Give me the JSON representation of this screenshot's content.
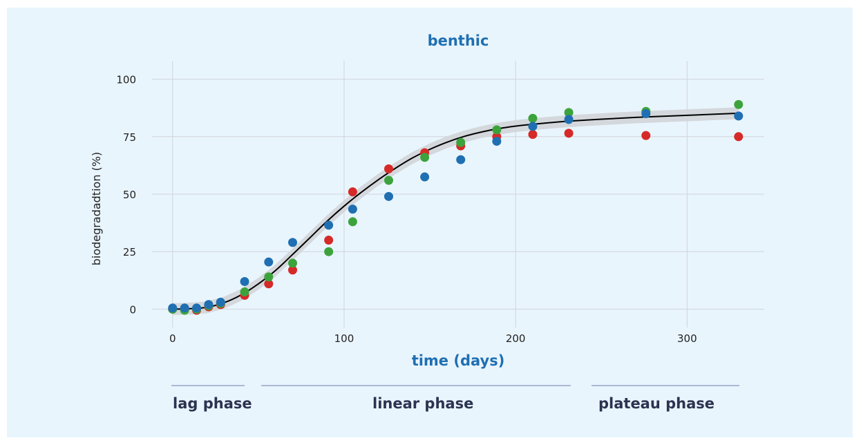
{
  "chart_data": {
    "type": "scatter",
    "title": "benthic",
    "xlabel": "time (days)",
    "ylabel": "biodegradadtion (%)",
    "xlim": [
      -12,
      345
    ],
    "ylim": [
      -8,
      108
    ],
    "xticks": [
      0,
      100,
      200,
      300
    ],
    "yticks": [
      0,
      25,
      50,
      75,
      100
    ],
    "grid": true,
    "colors": {
      "title": "#1f6fb2",
      "axis_label": "#1f6fb2",
      "grid": "#cfd4da",
      "fit_line": "#000000",
      "ribbon": "#d2d5d8"
    },
    "series": [
      {
        "color": "#d62a28",
        "points": [
          [
            0,
            0
          ],
          [
            7,
            0
          ],
          [
            14,
            -0.5
          ],
          [
            21,
            1
          ],
          [
            28,
            2
          ],
          [
            42,
            6
          ],
          [
            56,
            11
          ],
          [
            70,
            17
          ],
          [
            91,
            30
          ],
          [
            105,
            51
          ],
          [
            126,
            61
          ],
          [
            147,
            68
          ],
          [
            168,
            71
          ],
          [
            189,
            75
          ],
          [
            210,
            76
          ],
          [
            231,
            76.5
          ],
          [
            276,
            75.5
          ],
          [
            330,
            75
          ]
        ]
      },
      {
        "color": "#3ca33c",
        "points": [
          [
            0,
            0
          ],
          [
            7,
            -0.5
          ],
          [
            14,
            0
          ],
          [
            21,
            1.5
          ],
          [
            28,
            2.5
          ],
          [
            42,
            7.5
          ],
          [
            56,
            14
          ],
          [
            70,
            20
          ],
          [
            91,
            25
          ],
          [
            105,
            38
          ],
          [
            126,
            56
          ],
          [
            147,
            66
          ],
          [
            168,
            72.5
          ],
          [
            189,
            78
          ],
          [
            210,
            83
          ],
          [
            231,
            85.5
          ],
          [
            276,
            86
          ],
          [
            330,
            89
          ]
        ]
      },
      {
        "color": "#1f6fb2",
        "points": [
          [
            0,
            0.5
          ],
          [
            7,
            0.5
          ],
          [
            14,
            0.5
          ],
          [
            21,
            2
          ],
          [
            28,
            3
          ],
          [
            42,
            12
          ],
          [
            56,
            20.5
          ],
          [
            70,
            29
          ],
          [
            91,
            36.5
          ],
          [
            105,
            43.5
          ],
          [
            126,
            49
          ],
          [
            147,
            57.5
          ],
          [
            168,
            65
          ],
          [
            189,
            73
          ],
          [
            210,
            79.5
          ],
          [
            231,
            82.5
          ],
          [
            276,
            85
          ],
          [
            330,
            84
          ]
        ]
      }
    ],
    "fit": {
      "points": [
        [
          0,
          0
        ],
        [
          10,
          0.2
        ],
        [
          20,
          0.8
        ],
        [
          30,
          2.8
        ],
        [
          40,
          6.2
        ],
        [
          50,
          11
        ],
        [
          60,
          16.8
        ],
        [
          70,
          23.8
        ],
        [
          80,
          31
        ],
        [
          90,
          38.2
        ],
        [
          100,
          44.8
        ],
        [
          110,
          50.8
        ],
        [
          120,
          56.3
        ],
        [
          130,
          61.3
        ],
        [
          140,
          65.8
        ],
        [
          150,
          69.5
        ],
        [
          160,
          72.6
        ],
        [
          170,
          75.1
        ],
        [
          180,
          77
        ],
        [
          190,
          78.5
        ],
        [
          200,
          79.6
        ],
        [
          210,
          80.4
        ],
        [
          220,
          81.1
        ],
        [
          230,
          81.7
        ],
        [
          250,
          82.6
        ],
        [
          270,
          83.4
        ],
        [
          290,
          84
        ],
        [
          310,
          84.6
        ],
        [
          330,
          85.2
        ]
      ],
      "band": 2.6
    }
  },
  "phases": [
    {
      "label": "lag phase"
    },
    {
      "label": "linear phase"
    },
    {
      "label": "plateau phase"
    }
  ]
}
